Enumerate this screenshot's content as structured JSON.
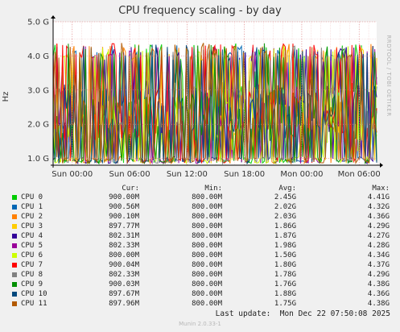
{
  "header": {
    "title": "CPU frequency scaling - by day",
    "y_unit": "Hz",
    "watermark": "RRDTOOL / TOBI OETIKER"
  },
  "chart_data": {
    "type": "line",
    "title": "CPU frequency scaling - by day",
    "ylabel": "Hz",
    "xlabel": "",
    "ylim": [
      800000000,
      5000000000
    ],
    "y_ticks": [
      {
        "label": "1.0 G",
        "value": 1000000000
      },
      {
        "label": "2.0 G",
        "value": 2000000000
      },
      {
        "label": "3.0 G",
        "value": 3000000000
      },
      {
        "label": "4.0 G",
        "value": 4000000000
      },
      {
        "label": "5.0 G",
        "value": 5000000000
      }
    ],
    "x_range": [
      "Sat 22:00",
      "Mon 07:50"
    ],
    "x_ticks": [
      "Sun 00:00",
      "Sun 06:00",
      "Sun 12:00",
      "Sun 18:00",
      "Mon 00:00",
      "Mon 06:00"
    ],
    "grid": true,
    "legend_placement": "bottom"
  },
  "legend": {
    "headers": {
      "cur": "Cur:",
      "min": "Min:",
      "avg": "Avg:",
      "max": "Max:"
    },
    "rows": [
      {
        "name": "CPU 0",
        "color": "#00cc00",
        "cur": "900.00M",
        "min": "800.00M",
        "avg": "2.45G",
        "max": "4.41G"
      },
      {
        "name": "CPU 1",
        "color": "#0066b3",
        "cur": "900.56M",
        "min": "800.00M",
        "avg": "2.02G",
        "max": "4.32G"
      },
      {
        "name": "CPU 2",
        "color": "#ff8000",
        "cur": "900.10M",
        "min": "800.00M",
        "avg": "2.03G",
        "max": "4.36G"
      },
      {
        "name": "CPU 3",
        "color": "#ffcc00",
        "cur": "897.77M",
        "min": "800.00M",
        "avg": "1.86G",
        "max": "4.29G"
      },
      {
        "name": "CPU 4",
        "color": "#330099",
        "cur": "802.31M",
        "min": "800.00M",
        "avg": "1.87G",
        "max": "4.27G"
      },
      {
        "name": "CPU 5",
        "color": "#990099",
        "cur": "802.33M",
        "min": "800.00M",
        "avg": "1.98G",
        "max": "4.28G"
      },
      {
        "name": "CPU 6",
        "color": "#ccff00",
        "cur": "800.00M",
        "min": "800.00M",
        "avg": "1.50G",
        "max": "4.34G"
      },
      {
        "name": "CPU 7",
        "color": "#ff0000",
        "cur": "900.04M",
        "min": "800.00M",
        "avg": "1.80G",
        "max": "4.37G"
      },
      {
        "name": "CPU 8",
        "color": "#808080",
        "cur": "802.33M",
        "min": "800.00M",
        "avg": "1.78G",
        "max": "4.29G"
      },
      {
        "name": "CPU 9",
        "color": "#008f00",
        "cur": "900.03M",
        "min": "800.00M",
        "avg": "1.76G",
        "max": "4.38G"
      },
      {
        "name": "CPU 10",
        "color": "#00487d",
        "cur": "897.67M",
        "min": "800.00M",
        "avg": "1.88G",
        "max": "4.36G"
      },
      {
        "name": "CPU 11",
        "color": "#b35a00",
        "cur": "897.96M",
        "min": "800.00M",
        "avg": "1.75G",
        "max": "4.38G"
      }
    ]
  },
  "footer": {
    "last_update": "Last update:  Mon Dec 22 07:50:08 2025",
    "version": "Munin 2.0.33-1"
  }
}
